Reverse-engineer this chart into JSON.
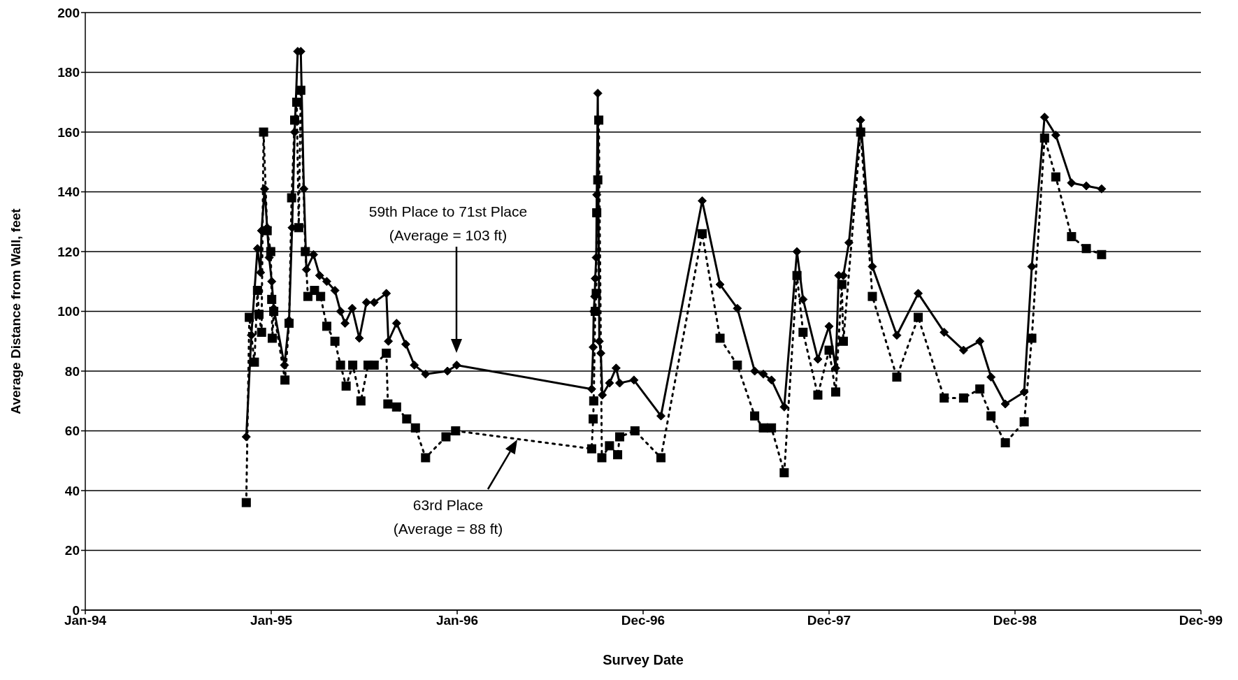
{
  "chart_data": {
    "type": "line",
    "xlabel": "Survey Date",
    "ylabel": "Average Distance from Wall, feet",
    "xlim": [
      "1994-01-01",
      "1999-12-31"
    ],
    "xticks": [
      {
        "value": "1994-01-01",
        "label": "Jan-94"
      },
      {
        "value": "1995-01-01",
        "label": "Jan-95"
      },
      {
        "value": "1996-01-01",
        "label": "Jan-96"
      },
      {
        "value": "1996-12-31",
        "label": "Dec-96"
      },
      {
        "value": "1997-12-31",
        "label": "Dec-97"
      },
      {
        "value": "1998-12-31",
        "label": "Dec-98"
      },
      {
        "value": "1999-12-31",
        "label": "Dec-99"
      }
    ],
    "ylim": [
      0,
      200
    ],
    "yticks": [
      0,
      20,
      40,
      60,
      80,
      100,
      120,
      140,
      160,
      180,
      200
    ],
    "grid": "y",
    "annotations": [
      "59th Place to 71st Place\n(Average = 103 ft)",
      "63rd Place\n(Average = 88 ft)"
    ],
    "series": [
      {
        "color": "#000000",
        "marker": "diamond",
        "line_style": "solid",
        "x": [
          "1994-11-13",
          "1994-11-23",
          "1994-12-05",
          "1994-12-11",
          "1994-12-13",
          "1994-12-19",
          "1994-12-24",
          "1994-12-28",
          "1995-01-02",
          "1995-01-06",
          "1995-01-27",
          "1995-02-05",
          "1995-02-11",
          "1995-02-16",
          "1995-02-22",
          "1995-02-28",
          "1995-03-06",
          "1995-03-11",
          "1995-03-25",
          "1995-04-06",
          "1995-04-20",
          "1995-05-06",
          "1995-05-17",
          "1995-05-26",
          "1995-06-09",
          "1995-06-23",
          "1995-07-07",
          "1995-07-22",
          "1995-08-15",
          "1995-08-19",
          "1995-09-04",
          "1995-09-22",
          "1995-10-09",
          "1995-10-31",
          "1995-12-13",
          "1995-12-31",
          "1996-09-21",
          "1996-09-24",
          "1996-09-25",
          "1996-09-27",
          "1996-09-28",
          "1996-09-30",
          "1996-10-01",
          "1996-10-03",
          "1996-10-06",
          "1996-10-09",
          "1996-10-12",
          "1996-10-26",
          "1996-11-08",
          "1996-11-15",
          "1996-12-13",
          "1997-02-04",
          "1997-04-26",
          "1997-05-31",
          "1997-07-04",
          "1997-08-07",
          "1997-08-24",
          "1997-09-09",
          "1997-10-04",
          "1997-10-29",
          "1997-11-10",
          "1997-12-09",
          "1997-12-31",
          "1998-01-13",
          "1998-01-19",
          "1998-01-28",
          "1998-02-08",
          "1998-03-03",
          "1998-03-26",
          "1998-05-13",
          "1998-06-24",
          "1998-08-14",
          "1998-09-21",
          "1998-10-23",
          "1998-11-14",
          "1998-12-12",
          "1999-01-18",
          "1999-02-02",
          "1999-02-27",
          "1999-03-21",
          "1999-04-21",
          "1999-05-20",
          "1999-06-19"
        ],
        "values": [
          58,
          92,
          121,
          113,
          127,
          141,
          128,
          118,
          110,
          101,
          82,
          97,
          128,
          160,
          187,
          187,
          141,
          114,
          119,
          112,
          110,
          107,
          100,
          96,
          101,
          91,
          103,
          103,
          106,
          90,
          96,
          89,
          82,
          79,
          80,
          82,
          74,
          88,
          100,
          105,
          111,
          118,
          139,
          173,
          90,
          86,
          72,
          76,
          81,
          76,
          77,
          65,
          137,
          109,
          101,
          80,
          79,
          77,
          68,
          120,
          104,
          84,
          95,
          81,
          112,
          112,
          123,
          164,
          115,
          92,
          106,
          93,
          87,
          90,
          78,
          69,
          73,
          115,
          165,
          159,
          143,
          142,
          141
        ]
      },
      {
        "color": "#000000",
        "marker": "square",
        "line_style": "dotted",
        "x": [
          "1994-11-13",
          "1994-11-19",
          "1994-11-29",
          "1994-12-05",
          "1994-12-08",
          "1994-12-13",
          "1994-12-17",
          "1994-12-24",
          "1994-12-31",
          "1995-01-02",
          "1995-01-03",
          "1995-01-06",
          "1995-01-28",
          "1995-02-05",
          "1995-02-10",
          "1995-02-16",
          "1995-02-20",
          "1995-02-24",
          "1995-02-28",
          "1995-03-09",
          "1995-03-14",
          "1995-03-27",
          "1995-04-08",
          "1995-04-20",
          "1995-05-06",
          "1995-05-17",
          "1995-05-28",
          "1995-06-10",
          "1995-06-26",
          "1995-07-10",
          "1995-07-22",
          "1995-08-15",
          "1995-08-18",
          "1995-09-04",
          "1995-09-24",
          "1995-10-11",
          "1995-10-31",
          "1995-12-10",
          "1995-12-29",
          "1996-09-21",
          "1996-09-24",
          "1996-09-25",
          "1996-09-28",
          "1996-09-30",
          "1996-10-01",
          "1996-10-03",
          "1996-10-05",
          "1996-10-11",
          "1996-10-26",
          "1996-11-11",
          "1996-11-15",
          "1996-12-15",
          "1997-02-04",
          "1997-04-26",
          "1997-05-31",
          "1997-07-04",
          "1997-08-07",
          "1997-08-24",
          "1997-09-09",
          "1997-10-04",
          "1997-10-29",
          "1997-11-10",
          "1997-12-09",
          "1997-12-31",
          "1998-01-13",
          "1998-01-25",
          "1998-01-28",
          "1998-03-03",
          "1998-03-26",
          "1998-05-13",
          "1998-06-24",
          "1998-08-14",
          "1998-09-21",
          "1998-10-23",
          "1998-11-14",
          "1998-12-12",
          "1999-01-18",
          "1999-02-02",
          "1999-02-27",
          "1999-03-21",
          "1999-04-21",
          "1999-05-20",
          "1999-06-19"
        ],
        "values": [
          36,
          98,
          83,
          107,
          99,
          93,
          160,
          127,
          120,
          104,
          91,
          100,
          77,
          96,
          138,
          164,
          170,
          128,
          174,
          120,
          105,
          107,
          105,
          95,
          90,
          82,
          75,
          82,
          70,
          82,
          82,
          86,
          69,
          68,
          64,
          61,
          51,
          58,
          60,
          54,
          64,
          70,
          100,
          106,
          133,
          144,
          164,
          51,
          55,
          52,
          58,
          60,
          51,
          126,
          91,
          82,
          65,
          61,
          61,
          46,
          112,
          93,
          72,
          87,
          73,
          109,
          90,
          160,
          105,
          78,
          98,
          71,
          71,
          74,
          65,
          56,
          63,
          91,
          158,
          145,
          125,
          121,
          119
        ]
      }
    ]
  }
}
